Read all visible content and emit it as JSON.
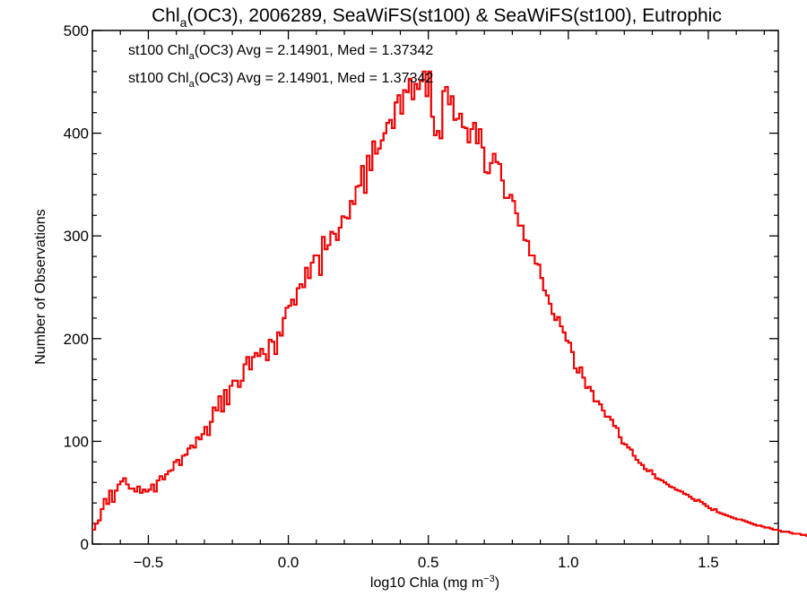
{
  "chart_data": {
    "type": "histogram",
    "title": {
      "pre": "Chl",
      "sub": "a",
      "post": "(OC3), 2006289, SeaWiFS(st100) & SeaWiFS(st100), Eutrophic"
    },
    "xlabel": {
      "pre": "log10 Chla (mg m",
      "sup": "−3",
      "post": ")"
    },
    "ylabel": "Number of Observations",
    "xlim": [
      -0.7,
      1.75
    ],
    "ylim": [
      0,
      500
    ],
    "x_ticks": [
      -0.5,
      0.0,
      0.5,
      1.0,
      1.5
    ],
    "x_tick_labels": [
      "−0.5",
      "0.0",
      "0.5",
      "1.0",
      "1.5"
    ],
    "y_ticks": [
      0,
      100,
      200,
      300,
      400,
      500
    ],
    "y_tick_labels": [
      "0",
      "100",
      "200",
      "300",
      "400",
      "500"
    ],
    "grid": false,
    "legend": [
      {
        "pre": "st100 Chl",
        "sub": "a",
        "post": "(OC3) Avg = 2.14901, Med = 1.37342",
        "color": "#000000"
      },
      {
        "pre": "st100 Chl",
        "sub": "a",
        "post": "(OC3) Avg = 2.14901, Med = 1.37342",
        "color": "#ff0000"
      }
    ],
    "bin_start": -0.7,
    "bin_width": 0.01,
    "series": [
      {
        "color": "#000000",
        "values": [
          14,
          20,
          23,
          34,
          44,
          39,
          52,
          41,
          52,
          58,
          61,
          64,
          58,
          54,
          54,
          51,
          56,
          50,
          53,
          51,
          53,
          58,
          51,
          62,
          66,
          63,
          68,
          71,
          72,
          80,
          82,
          77,
          86,
          87,
          93,
          96,
          94,
          104,
          102,
          107,
          114,
          106,
          119,
          133,
          130,
          144,
          129,
          150,
          136,
          154,
          159,
          159,
          153,
          159,
          175,
          182,
          170,
          182,
          186,
          183,
          190,
          185,
          179,
          199,
          197,
          185,
          206,
          203,
          220,
          230,
          232,
          238,
          233,
          249,
          253,
          250,
          269,
          259,
          274,
          281,
          281,
          262,
          299,
          287,
          291,
          304,
          302,
          296,
          308,
          319,
          318,
          317,
          334,
          331,
          348,
          349,
          368,
          342,
          378,
          364,
          392,
          380,
          385,
          393,
          400,
          410,
          413,
          405,
          430,
          437,
          419,
          442,
          440,
          453,
          433,
          448,
          443,
          451,
          460,
          436,
          460,
          416,
          398,
          402,
          395,
          441,
          445,
          428,
          436,
          413,
          414,
          419,
          406,
          405,
          391,
          404,
          410,
          390,
          404,
          386,
          362,
          361,
          371,
          380,
          372,
          370,
          354,
          337,
          337,
          340,
          334,
          322,
          310,
          310,
          296,
          295,
          281,
          281,
          273,
          272,
          259,
          247,
          242,
          234,
          224,
          218,
          221,
          212,
          206,
          198,
          196,
          187,
          171,
          167,
          172,
          162,
          152,
          153,
          149,
          139,
          139,
          136,
          130,
          124,
          124,
          121,
          115,
          113,
          104,
          98,
          97,
          94,
          92,
          86,
          82,
          79,
          77,
          73,
          71,
          72,
          68,
          64,
          63,
          62,
          60,
          58,
          56,
          55,
          53,
          52,
          51,
          49,
          48,
          46,
          44,
          42,
          43,
          41,
          39,
          37,
          35,
          33,
          34,
          31,
          30,
          29,
          28,
          27,
          26,
          25,
          24,
          24,
          23,
          22,
          21,
          20,
          19,
          18,
          18,
          17,
          16,
          16,
          15,
          14,
          14,
          13,
          12,
          12,
          12,
          11,
          10,
          10,
          10,
          9,
          9,
          8,
          8,
          8,
          7,
          7,
          6,
          6,
          6,
          5,
          5,
          5,
          5,
          4,
          4,
          4,
          3,
          3,
          3,
          3,
          3,
          2,
          2
        ]
      },
      {
        "color": "#ff0000",
        "values": [
          14,
          20,
          23,
          34,
          44,
          39,
          52,
          41,
          52,
          58,
          61,
          64,
          58,
          54,
          54,
          51,
          56,
          50,
          53,
          51,
          53,
          58,
          51,
          62,
          66,
          63,
          68,
          71,
          72,
          80,
          82,
          77,
          86,
          87,
          93,
          96,
          94,
          104,
          102,
          107,
          114,
          106,
          119,
          133,
          130,
          144,
          129,
          150,
          136,
          154,
          159,
          159,
          153,
          159,
          175,
          182,
          170,
          182,
          186,
          183,
          190,
          185,
          179,
          199,
          197,
          185,
          206,
          203,
          220,
          230,
          232,
          238,
          233,
          249,
          253,
          250,
          269,
          259,
          274,
          281,
          281,
          262,
          299,
          287,
          291,
          304,
          302,
          296,
          308,
          319,
          318,
          317,
          334,
          331,
          348,
          349,
          368,
          342,
          378,
          364,
          392,
          380,
          385,
          393,
          400,
          410,
          413,
          405,
          430,
          437,
          419,
          442,
          440,
          453,
          433,
          448,
          443,
          451,
          460,
          436,
          460,
          416,
          398,
          402,
          395,
          441,
          445,
          428,
          436,
          413,
          414,
          419,
          406,
          405,
          391,
          404,
          410,
          390,
          404,
          386,
          362,
          361,
          371,
          380,
          372,
          370,
          354,
          337,
          337,
          340,
          334,
          322,
          310,
          310,
          296,
          295,
          281,
          281,
          273,
          272,
          259,
          247,
          242,
          234,
          224,
          218,
          221,
          212,
          206,
          198,
          196,
          187,
          171,
          167,
          172,
          162,
          152,
          153,
          149,
          139,
          139,
          136,
          130,
          124,
          124,
          121,
          115,
          113,
          104,
          98,
          97,
          94,
          92,
          86,
          82,
          79,
          77,
          73,
          71,
          72,
          68,
          64,
          63,
          62,
          60,
          58,
          56,
          55,
          53,
          52,
          51,
          49,
          48,
          46,
          44,
          42,
          43,
          41,
          39,
          37,
          35,
          33,
          34,
          31,
          30,
          29,
          28,
          27,
          26,
          25,
          24,
          24,
          23,
          22,
          21,
          20,
          19,
          18,
          18,
          17,
          16,
          16,
          15,
          14,
          14,
          13,
          12,
          12,
          12,
          11,
          10,
          10,
          10,
          9,
          9,
          8,
          8,
          8,
          7,
          7,
          6,
          6,
          6,
          5,
          5,
          5,
          5,
          4,
          4,
          4,
          3,
          3,
          3,
          3,
          3,
          2,
          2
        ]
      }
    ]
  }
}
